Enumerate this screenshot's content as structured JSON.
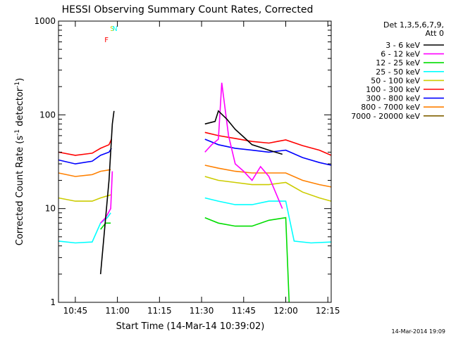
{
  "chart_data": {
    "type": "line",
    "title": "HESSI Observing Summary Count Rates, Corrected",
    "xlabel": "Start Time (14-Mar-14 10:39:02)",
    "ylabel": "Corrected Count Rate (s⁻¹ detector⁻¹)",
    "ylabel_base": "Corrected Count Rate (s",
    "ylabel_mid": " detector",
    "ylabel_end": ")",
    "ylabel_sup": "-1",
    "yscale": "log",
    "xlim": [
      10.65,
      12.27
    ],
    "ylim": [
      1,
      1000
    ],
    "x_ticks": [
      {
        "x": 10.75,
        "label": "10:45"
      },
      {
        "x": 11.0,
        "label": "11:00"
      },
      {
        "x": 11.25,
        "label": "11:15"
      },
      {
        "x": 11.5,
        "label": "11:30"
      },
      {
        "x": 11.75,
        "label": "11:45"
      },
      {
        "x": 12.0,
        "label": "12:00"
      },
      {
        "x": 12.25,
        "label": "12:15"
      }
    ],
    "y_ticks": [
      {
        "y": 1,
        "label": "1"
      },
      {
        "y": 10,
        "label": "10"
      },
      {
        "y": 100,
        "label": "100"
      },
      {
        "y": 1000,
        "label": "1000"
      }
    ],
    "legend": {
      "placement": "top-right",
      "header": [
        "Det 1,3,5,6,7,9,",
        "Att 0"
      ],
      "entries": [
        {
          "label": "3 - 6 keV",
          "color": "#000000"
        },
        {
          "label": "6 - 12 keV",
          "color": "#ff00ff"
        },
        {
          "label": "12 - 25 keV",
          "color": "#00dd00"
        },
        {
          "label": "25 - 50 keV",
          "color": "#00ffff"
        },
        {
          "label": "50 - 100 keV",
          "color": "#cccc00"
        },
        {
          "label": "100 - 300 keV",
          "color": "#ff0000"
        },
        {
          "label": "300 - 800 keV",
          "color": "#0000ff"
        },
        {
          "label": "800 - 7000 keV",
          "color": "#ff8000"
        },
        {
          "label": "7000 - 20000 keV",
          "color": "#806000"
        }
      ]
    },
    "series": [
      {
        "name": "100 - 300 keV",
        "color": "#ff0000",
        "segments": [
          [
            [
              10.65,
              40
            ],
            [
              10.75,
              37
            ],
            [
              10.85,
              39
            ],
            [
              10.9,
              44
            ],
            [
              10.95,
              48
            ],
            [
              10.965,
              55
            ]
          ],
          [
            [
              11.52,
              65
            ],
            [
              11.6,
              60
            ],
            [
              11.7,
              56
            ],
            [
              11.8,
              52
            ],
            [
              11.9,
              50
            ],
            [
              11.95,
              52
            ],
            [
              12.0,
              54
            ],
            [
              12.1,
              47
            ],
            [
              12.2,
              42
            ],
            [
              12.27,
              37
            ]
          ]
        ]
      },
      {
        "name": "300 - 800 keV",
        "color": "#0000ff",
        "segments": [
          [
            [
              10.65,
              33
            ],
            [
              10.75,
              30
            ],
            [
              10.85,
              32
            ],
            [
              10.9,
              37
            ],
            [
              10.95,
              40
            ],
            [
              10.965,
              44
            ]
          ],
          [
            [
              11.52,
              55
            ],
            [
              11.6,
              48
            ],
            [
              11.7,
              44
            ],
            [
              11.8,
              42
            ],
            [
              11.9,
              40
            ],
            [
              11.95,
              41
            ],
            [
              12.0,
              42
            ],
            [
              12.1,
              35
            ],
            [
              12.2,
              31
            ],
            [
              12.27,
              29
            ]
          ]
        ]
      },
      {
        "name": "800 - 7000 keV",
        "color": "#ff8000",
        "segments": [
          [
            [
              10.65,
              24
            ],
            [
              10.75,
              22
            ],
            [
              10.85,
              23
            ],
            [
              10.9,
              25
            ],
            [
              10.96,
              26
            ]
          ],
          [
            [
              11.52,
              29
            ],
            [
              11.6,
              27
            ],
            [
              11.7,
              25
            ],
            [
              11.8,
              24
            ],
            [
              11.9,
              24
            ],
            [
              12.0,
              24
            ],
            [
              12.1,
              20
            ],
            [
              12.2,
              18
            ],
            [
              12.27,
              17
            ]
          ]
        ]
      },
      {
        "name": "50 - 100 keV",
        "color": "#cccc00",
        "segments": [
          [
            [
              10.65,
              13
            ],
            [
              10.75,
              12
            ],
            [
              10.85,
              12
            ],
            [
              10.9,
              13
            ],
            [
              10.96,
              14
            ]
          ],
          [
            [
              11.52,
              22
            ],
            [
              11.6,
              20
            ],
            [
              11.7,
              19
            ],
            [
              11.8,
              18
            ],
            [
              11.9,
              18
            ],
            [
              12.0,
              19
            ],
            [
              12.1,
              15
            ],
            [
              12.2,
              13
            ],
            [
              12.27,
              12
            ]
          ]
        ]
      },
      {
        "name": "25 - 50 keV",
        "color": "#00ffff",
        "segments": [
          [
            [
              10.65,
              4.5
            ],
            [
              10.75,
              4.3
            ],
            [
              10.85,
              4.4
            ],
            [
              10.9,
              7
            ],
            [
              10.94,
              8
            ],
            [
              10.96,
              9
            ]
          ],
          [
            [
              11.52,
              13
            ],
            [
              11.6,
              12
            ],
            [
              11.7,
              11
            ],
            [
              11.8,
              11
            ],
            [
              11.9,
              12
            ],
            [
              12.0,
              12
            ],
            [
              12.05,
              4.5
            ],
            [
              12.15,
              4.3
            ],
            [
              12.27,
              4.4
            ]
          ]
        ]
      },
      {
        "name": "12 - 25 keV",
        "color": "#00dd00",
        "segments": [
          [
            [
              10.9,
              6
            ],
            [
              10.93,
              7
            ],
            [
              10.96,
              7
            ]
          ],
          [
            [
              11.52,
              8
            ],
            [
              11.6,
              7
            ],
            [
              11.7,
              6.5
            ],
            [
              11.8,
              6.5
            ],
            [
              11.9,
              7.5
            ],
            [
              12.0,
              8
            ],
            [
              12.02,
              1
            ]
          ]
        ]
      },
      {
        "name": "6 - 12 keV",
        "color": "#ff00ff",
        "segments": [
          [
            [
              10.9,
              7
            ],
            [
              10.93,
              8
            ],
            [
              10.96,
              10
            ],
            [
              10.97,
              25
            ]
          ],
          [
            [
              11.52,
              40
            ],
            [
              11.56,
              48
            ],
            [
              11.6,
              55
            ],
            [
              11.62,
              220
            ],
            [
              11.66,
              60
            ],
            [
              11.7,
              30
            ],
            [
              11.75,
              25
            ],
            [
              11.8,
              20
            ],
            [
              11.85,
              28
            ],
            [
              11.9,
              22
            ],
            [
              11.98,
              10
            ]
          ]
        ]
      },
      {
        "name": "3 - 6 keV",
        "color": "#000000",
        "segments": [
          [
            [
              10.9,
              2
            ],
            [
              10.95,
              20
            ],
            [
              10.97,
              80
            ],
            [
              10.98,
              110
            ]
          ],
          [
            [
              11.52,
              80
            ],
            [
              11.58,
              85
            ],
            [
              11.6,
              110
            ],
            [
              11.65,
              90
            ],
            [
              11.7,
              70
            ],
            [
              11.75,
              58
            ],
            [
              11.8,
              48
            ],
            [
              11.85,
              45
            ],
            [
              11.9,
              42
            ],
            [
              11.98,
              38
            ]
          ]
        ]
      }
    ],
    "annotations": [
      {
        "text": "S",
        "x": 10.97,
        "color": "#cccc00"
      },
      {
        "text": "N",
        "x": 10.985,
        "color": "#00ffff"
      },
      {
        "text": "F",
        "x": 10.935,
        "color": "#ff0000"
      }
    ],
    "footer_date": "14-Mar-2014 19:09"
  }
}
